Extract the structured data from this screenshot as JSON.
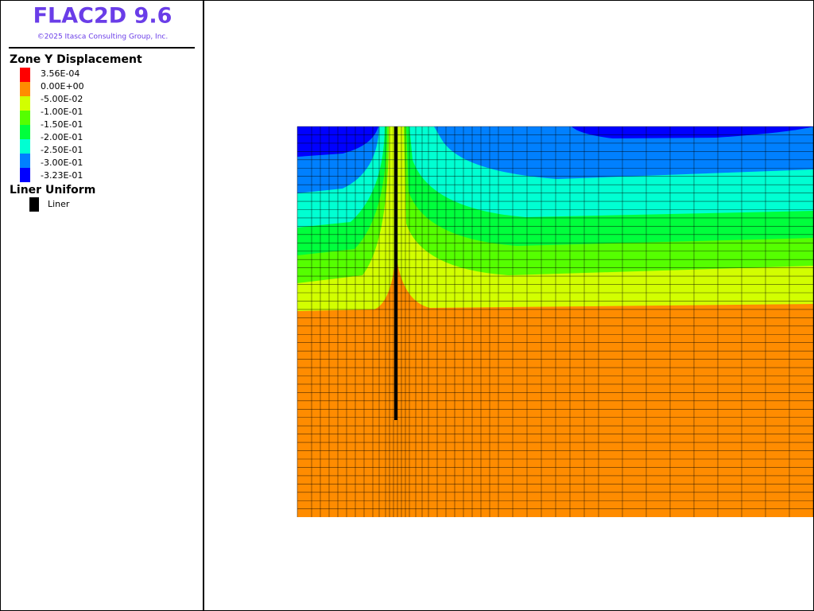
{
  "header": {
    "title": "FLAC2D 9.6",
    "copyright": "©2025 Itasca Consulting Group, Inc."
  },
  "legend": {
    "title": "Zone Y Displacement",
    "labels": [
      "3.56E-04",
      "0.00E+00",
      "-5.00E-02",
      "-1.00E-01",
      "-1.50E-01",
      "-2.00E-01",
      "-2.50E-01",
      "-3.00E-01",
      "-3.23E-01"
    ],
    "colors": [
      "#ff0000",
      "#ff8c00",
      "#d2ff00",
      "#55ff00",
      "#00ff3c",
      "#00ffd2",
      "#0080ff",
      "#0000ff"
    ]
  },
  "liner_legend": {
    "title": "Liner Uniform",
    "label": "Liner",
    "color": "#000000"
  }
}
